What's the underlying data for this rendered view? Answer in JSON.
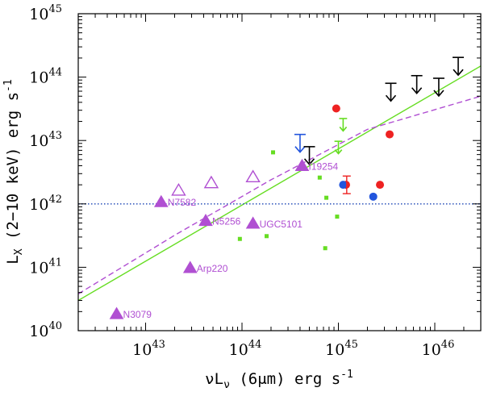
{
  "chart_data": {
    "type": "scatter",
    "title": "",
    "xscale": "log",
    "yscale": "log",
    "xlim": [
      2e+42,
      3e+46
    ],
    "ylim": [
      1e+40,
      1e+45
    ],
    "xlabel": {
      "pre": "νL",
      "sub": "ν",
      "post": " (6μm) erg s",
      "sup": "-1"
    },
    "ylabel": {
      "pre": "L",
      "sub": "X",
      "post": " (2−10 keV) erg s",
      "sup": "-1"
    },
    "xticks": [
      {
        "value": 1e+43,
        "base": "10",
        "exp": "43"
      },
      {
        "value": 1e+44,
        "base": "10",
        "exp": "44"
      },
      {
        "value": 1e+45,
        "base": "10",
        "exp": "45"
      },
      {
        "value": 1e+46,
        "base": "10",
        "exp": "46"
      }
    ],
    "yticks": [
      {
        "value": 1e+40,
        "base": "10",
        "exp": "40"
      },
      {
        "value": 1e+41,
        "base": "10",
        "exp": "41"
      },
      {
        "value": 1e+42,
        "base": "10",
        "exp": "42"
      },
      {
        "value": 1e+43,
        "base": "10",
        "exp": "43"
      },
      {
        "value": 1e+44,
        "base": "10",
        "exp": "44"
      },
      {
        "value": 1e+45,
        "base": "10",
        "exp": "45"
      }
    ],
    "colors": {
      "purple": "#b04fd2",
      "green": "#66dd22",
      "red": "#ee2222",
      "blue": "#2255dd",
      "black": "#000000",
      "dotted_line": "#3b5fbf"
    },
    "lines": [
      {
        "style": "solid",
        "color": "green",
        "points": [
          [
            2e+42,
            3e+40
          ],
          [
            3e+46,
            1.5e+44
          ]
        ]
      },
      {
        "style": "dashed",
        "color": "purple",
        "points": [
          [
            2e+42,
            3.8e+40
          ],
          [
            2e+43,
            3.2e+41
          ],
          [
            2e+44,
            2.4e+42
          ],
          [
            2e+45,
            1.5e+43
          ],
          [
            3e+46,
            5e+43
          ]
        ]
      },
      {
        "style": "dotted",
        "color": "dotted_line",
        "points": [
          [
            2e+42,
            1e+42
          ],
          [
            3e+46,
            1e+42
          ]
        ]
      }
    ],
    "series": [
      {
        "marker": "triangle-filled",
        "color": "purple",
        "points": [
          {
            "x": 5e+42,
            "y": 1.8e+40,
            "label": "N3079"
          },
          {
            "x": 2.9e+43,
            "y": 9.6e+40,
            "label": "Arp220"
          },
          {
            "x": 1.45e+43,
            "y": 1.05e+42,
            "label": "N7582"
          },
          {
            "x": 4.2e+43,
            "y": 5.3e+41,
            "label": "N5256"
          },
          {
            "x": 1.3e+44,
            "y": 4.8e+41,
            "label": "UGC5101"
          },
          {
            "x": 4.2e+44,
            "y": 3.9e+42,
            "label": "I19254"
          }
        ]
      },
      {
        "marker": "triangle-open",
        "color": "purple",
        "points": [
          {
            "x": 2.2e+43,
            "y": 1.6e+42
          },
          {
            "x": 4.8e+43,
            "y": 2.1e+42
          },
          {
            "x": 1.3e+44,
            "y": 2.6e+42
          }
        ]
      },
      {
        "marker": "square-small",
        "color": "green",
        "points": [
          {
            "x": 2.1e+44,
            "y": 6.5e+42
          },
          {
            "x": 6.4e+44,
            "y": 2.6e+42
          },
          {
            "x": 7.5e+44,
            "y": 1.25e+42
          },
          {
            "x": 9.7e+44,
            "y": 6.3e+41
          },
          {
            "x": 1.8e+44,
            "y": 3.1e+41
          },
          {
            "x": 9.5e+43,
            "y": 2.8e+41
          },
          {
            "x": 7.3e+44,
            "y": 2e+41
          }
        ]
      },
      {
        "marker": "upper-limit",
        "color": "green",
        "points": [
          {
            "x": 1.12e+45,
            "y": 1.6e+43
          },
          {
            "x": 1e+45,
            "y": 7e+42
          }
        ]
      },
      {
        "marker": "circle",
        "color": "red",
        "points": [
          {
            "x": 9.5e+44,
            "y": 3.2e+43
          },
          {
            "x": 3.4e+45,
            "y": 1.25e+43
          },
          {
            "x": 1.2e+45,
            "y": 2e+42
          },
          {
            "x": 2.7e+45,
            "y": 2e+42
          }
        ]
      },
      {
        "marker": "circle",
        "color": "blue",
        "points": [
          {
            "x": 1.12e+45,
            "y": 2e+42
          },
          {
            "x": 2.3e+45,
            "y": 1.3e+42
          }
        ]
      },
      {
        "marker": "errorbar",
        "color": "red",
        "points": [
          {
            "x": 1.22e+45,
            "y": 2e+42,
            "ylow": 1.45e+42,
            "yhigh": 2.75e+42
          }
        ]
      },
      {
        "marker": "upper-limit",
        "color": "blue",
        "points": [
          {
            "x": 4e+44,
            "y": 7.8e+42
          }
        ]
      },
      {
        "marker": "upper-limit",
        "color": "black",
        "points": [
          {
            "x": 5e+44,
            "y": 5e+42
          },
          {
            "x": 3.5e+45,
            "y": 5e+43
          },
          {
            "x": 6.5e+45,
            "y": 6.6e+43
          },
          {
            "x": 1.1e+46,
            "y": 6e+43
          },
          {
            "x": 1.75e+46,
            "y": 1.28e+44
          }
        ]
      }
    ]
  }
}
